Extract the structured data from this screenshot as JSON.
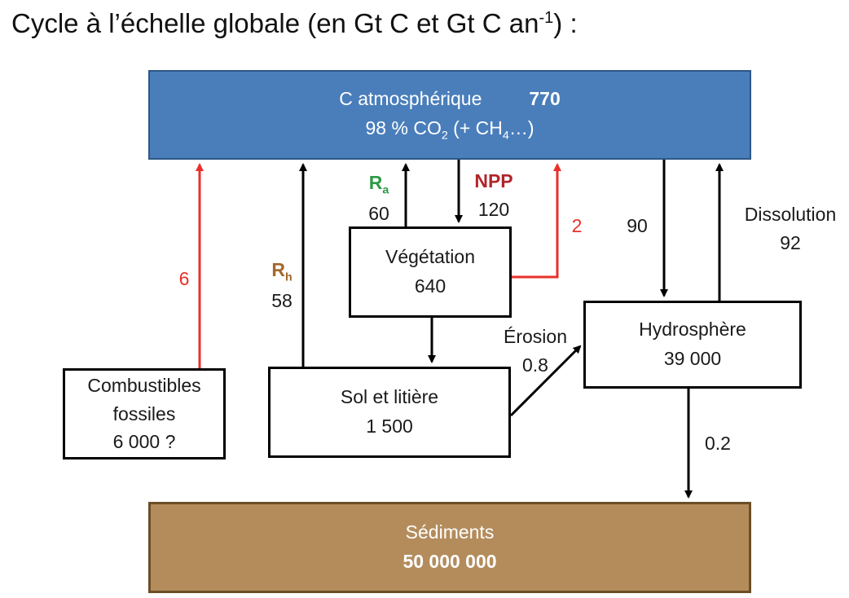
{
  "title": {
    "text": "Cycle à l’échelle globale (en Gt C et Gt C an",
    "superscript": "-1",
    "suffix": ") :"
  },
  "colors": {
    "atmosphere_fill": "#4a7ebb",
    "sediments_fill": "#b48c5c",
    "anthropogenic_arrow": "#e8302a",
    "natural_arrow": "#000000",
    "ra_label": "#2e9a45",
    "npp_label": "#b0262a",
    "rh_label": "#a4672b"
  },
  "boxes": {
    "atmosphere": {
      "name": "C atmosphérique",
      "value": "770",
      "composition_prefix": "98 % CO",
      "co2_sub": "2",
      "composition_mid": " (+ CH",
      "ch4_sub": "4",
      "composition_suffix": "…)"
    },
    "vegetation": {
      "name": "Végétation",
      "value": "640"
    },
    "soil": {
      "name": "Sol et litière",
      "value": "1 500"
    },
    "hydrosphere": {
      "name": "Hydrosphère",
      "value": "39 000"
    },
    "fossil": {
      "line1": "Combustibles",
      "line2": "fossiles",
      "value": "6 000 ?"
    },
    "sediments": {
      "name": "Sédiments",
      "value": "50 000 000"
    }
  },
  "fluxes": {
    "fossil_to_atm": {
      "value": "6"
    },
    "soil_to_atm": {
      "symbol": "R",
      "sub": "h",
      "value": "58"
    },
    "veg_to_atm": {
      "symbol": "R",
      "sub": "a",
      "value": "60"
    },
    "atm_to_veg": {
      "symbol": "NPP",
      "value": "120"
    },
    "land_use_to_atm": {
      "value": "2"
    },
    "atm_to_hydro": {
      "value": "90"
    },
    "hydro_to_atm": {
      "label": "Dissolution",
      "value": "92"
    },
    "soil_to_hydro": {
      "label": "Érosion",
      "value": "0.8"
    },
    "hydro_to_sed": {
      "value": "0.2"
    }
  }
}
